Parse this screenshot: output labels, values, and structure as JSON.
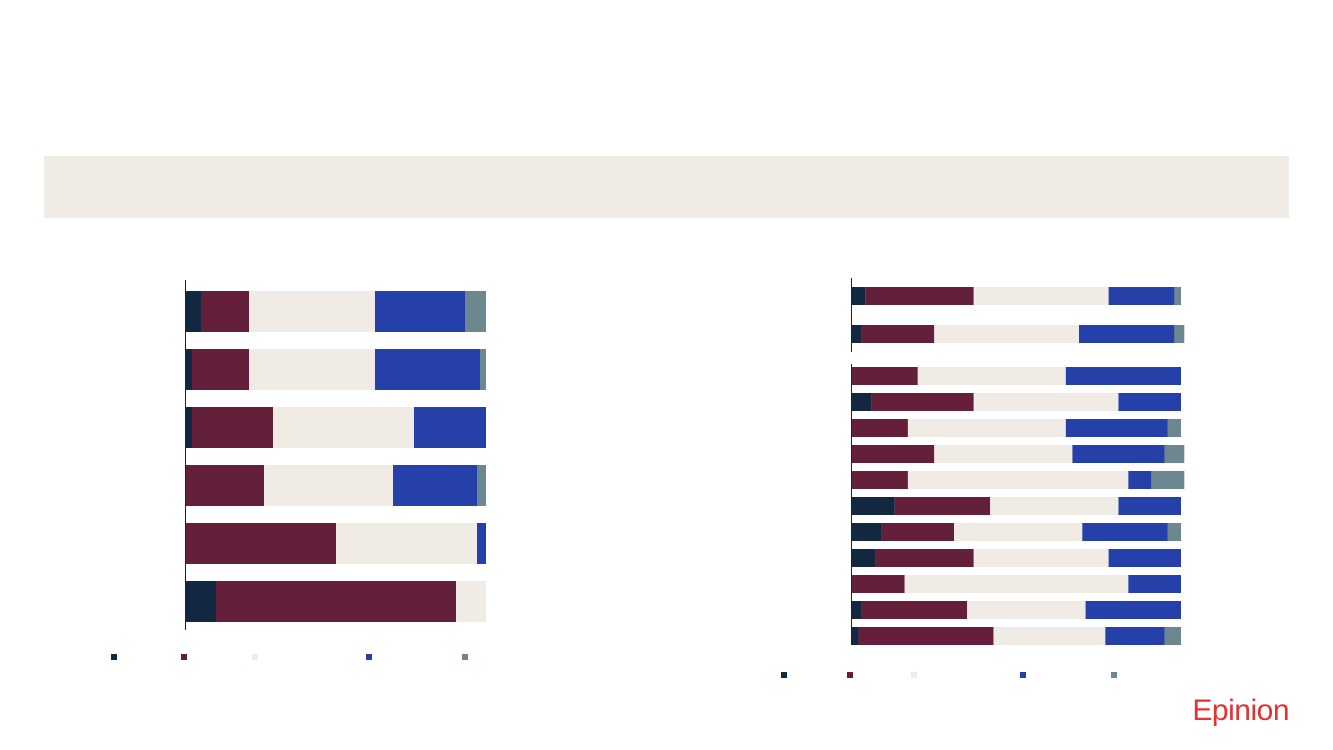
{
  "brand": {
    "name": "Epinion",
    "color": "#E03434"
  },
  "colors": {
    "band": "#F0EBE4",
    "axis": "#222222"
  },
  "chart_data": [
    {
      "type": "bar",
      "orientation": "horizontal",
      "stacked": "100%",
      "xlim": [
        0,
        100
      ],
      "grid": false,
      "legend": "bottom",
      "series": [
        {
          "color": "#122840",
          "values": [
            5,
            2,
            2,
            0,
            0,
            10
          ]
        },
        {
          "color": "#641F3B",
          "values": [
            16,
            19,
            27,
            26,
            50,
            80
          ]
        },
        {
          "color": "#F0EBE4",
          "values": [
            42,
            42,
            47,
            43,
            47,
            10
          ]
        },
        {
          "color": "#2540A8",
          "values": [
            30,
            35,
            24,
            28,
            3,
            0
          ]
        },
        {
          "color": "#6C8790",
          "values": [
            7,
            2,
            0,
            3,
            0,
            0
          ]
        }
      ]
    },
    {
      "type": "bar",
      "orientation": "horizontal",
      "stacked": "100%",
      "xlim": [
        0,
        100
      ],
      "grid": false,
      "legend": "bottom",
      "groups": [
        2,
        11
      ],
      "series": [
        {
          "color": "#122840",
          "values": [
            4,
            3,
            0,
            6,
            0,
            0,
            0,
            13,
            9,
            7,
            0,
            3,
            2
          ]
        },
        {
          "color": "#641F3B",
          "values": [
            33,
            22,
            20,
            31,
            17,
            25,
            17,
            29,
            22,
            30,
            16,
            32,
            41
          ]
        },
        {
          "color": "#F0EBE4",
          "values": [
            41,
            44,
            45,
            44,
            48,
            42,
            67,
            39,
            39,
            41,
            68,
            36,
            34
          ]
        },
        {
          "color": "#2540A8",
          "values": [
            20,
            29,
            35,
            19,
            31,
            28,
            7,
            19,
            26,
            22,
            16,
            29,
            18
          ]
        },
        {
          "color": "#6C8790",
          "values": [
            2,
            3,
            0,
            0,
            4,
            6,
            10,
            0,
            4,
            0,
            0,
            0,
            5
          ]
        }
      ]
    }
  ]
}
